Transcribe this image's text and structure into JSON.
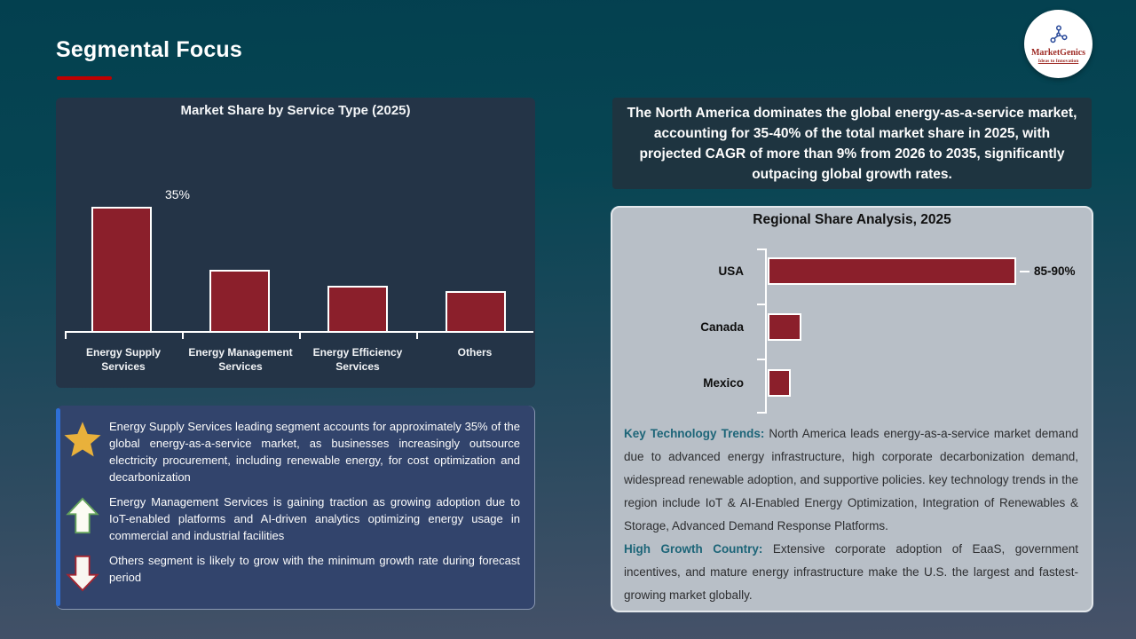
{
  "header": {
    "title": "Segmental Focus"
  },
  "logo": {
    "brand": "MarketGenics",
    "tagline": "Ideas to Innovation",
    "icon": "molecule-icon"
  },
  "callout": {
    "text": "The North America dominates the global energy-as-a-service market, accounting for 35-40% of the total market share in 2025, with projected CAGR of more than 9% from 2026 to 2035, significantly outpacing global growth rates."
  },
  "insights": [
    {
      "icon": "star-icon",
      "text": "Energy Supply Services leading segment accounts for approximately 35% of the global energy-as-a-service market, as businesses increasingly outsource electricity procurement, including renewable energy, for cost optimization and decarbonization"
    },
    {
      "icon": "up-arrow-icon",
      "text": "Energy Management Services is gaining traction as growing adoption due to IoT-enabled platforms and AI-driven analytics optimizing energy usage in commercial and industrial facilities"
    },
    {
      "icon": "down-arrow-icon",
      "text": "Others segment is likely to grow with the minimum growth rate during forecast period"
    }
  ],
  "regional_text": [
    {
      "heading": "Key Technology Trends:",
      "body": "North America leads energy-as-a-service market demand due to advanced energy infrastructure, high corporate decarbonization demand, widespread renewable adoption, and supportive policies. key technology trends in the region include IoT & AI-Enabled Energy Optimization, Integration of Renewables & Storage, Advanced Demand Response Platforms."
    },
    {
      "heading": "High Growth Country:",
      "body": "Extensive corporate adoption of EaaS, government incentives, and mature energy infrastructure make the U.S. the largest and fastest-growing market globally."
    }
  ],
  "chart_data": [
    {
      "id": "service_share",
      "type": "bar",
      "title": "Market Share by Service Type (2025)",
      "categories": [
        "Energy Supply Services",
        "Energy Management Services",
        "Energy Efficiency Services",
        "Others"
      ],
      "values": [
        35,
        17.5,
        13,
        11.5
      ],
      "data_labels": [
        "35%",
        "",
        "",
        ""
      ],
      "bar_color": "#8B1F2B",
      "xlabel": "",
      "ylabel": "",
      "ylim": [
        0,
        40
      ],
      "grid": false,
      "legend": "none"
    },
    {
      "id": "regional_share",
      "type": "bar-horizontal",
      "title": "Regional Share Analysis, 2025",
      "categories": [
        "USA",
        "Canada",
        "Mexico"
      ],
      "values": [
        87.5,
        12,
        8
      ],
      "data_labels": [
        "85-90%",
        "",
        ""
      ],
      "bar_color": "#8B1F2B",
      "xlabel": "",
      "ylabel": "",
      "xlim": [
        0,
        100
      ],
      "grid": false,
      "legend": "none"
    }
  ],
  "colors": {
    "accent_red": "#C00000",
    "bar_maroon": "#8B1F2B",
    "panel_dark": "#243447",
    "panel_navy": "#32446C",
    "stripe_blue": "#2E6FD6",
    "callout_bg": "#1E3440",
    "regional_bg": "#B8BFC7",
    "heading_teal": "#1D6578",
    "brand_red": "#9E2B25"
  }
}
